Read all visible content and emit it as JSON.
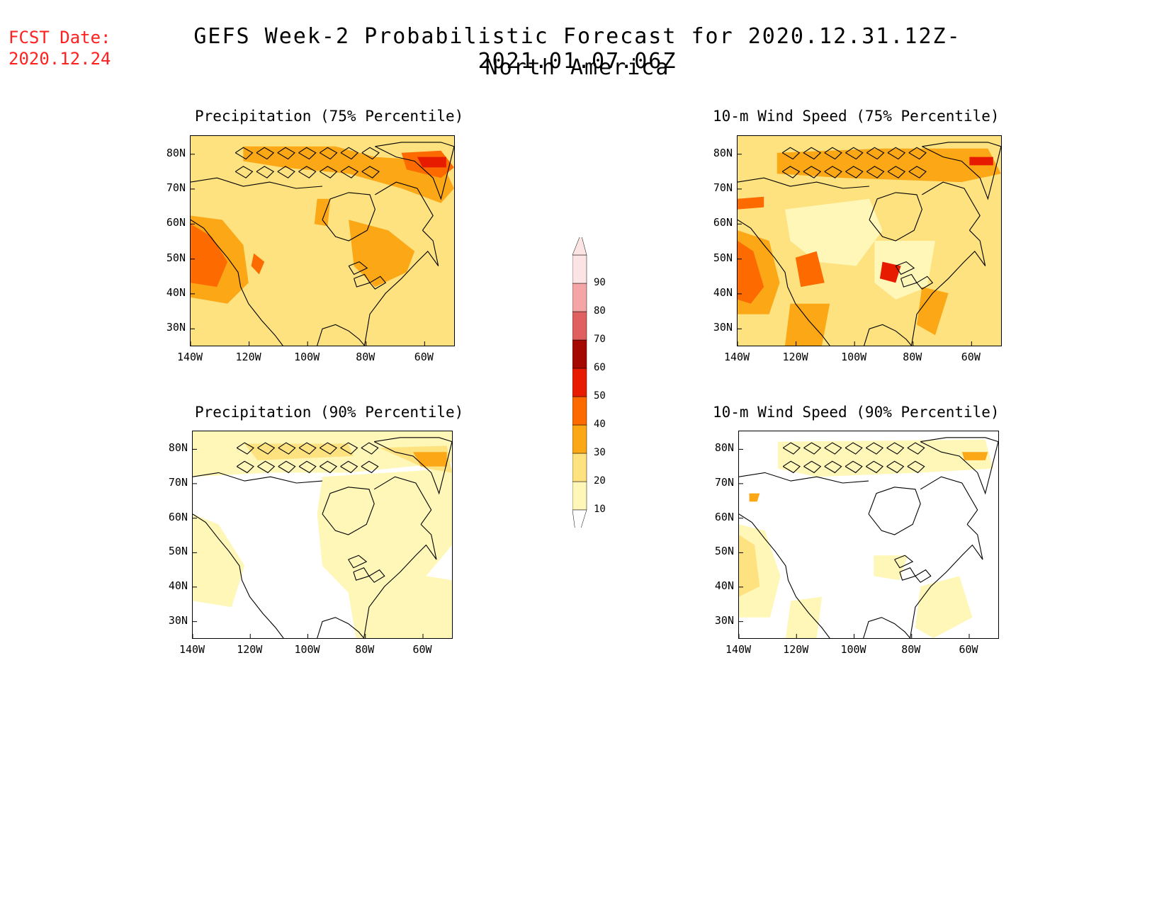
{
  "header": {
    "fcst_label": "FCST Date:",
    "fcst_date": "2020.12.24",
    "title": "GEFS Week-2 Probabilistic Forecast for 2020.12.31.12Z-2021.01.07.06Z",
    "region": "North America"
  },
  "axes": {
    "lat_labels": [
      "80N",
      "70N",
      "60N",
      "50N",
      "40N",
      "30N"
    ],
    "lon_labels": [
      "140W",
      "120W",
      "100W",
      "80W",
      "60W"
    ]
  },
  "panels": [
    {
      "title": "Precipitation (75% Percentile)",
      "intensity": "high",
      "theme": "precip"
    },
    {
      "title": "10-m Wind Speed (75% Percentile)",
      "intensity": "high",
      "theme": "wind"
    },
    {
      "title": "Precipitation (90% Percentile)",
      "intensity": "low",
      "theme": "precip"
    },
    {
      "title": "10-m Wind Speed (90% Percentile)",
      "intensity": "low",
      "theme": "wind"
    }
  ],
  "colorbar": {
    "levels": [
      "10",
      "20",
      "30",
      "40",
      "50",
      "60",
      "70",
      "80",
      "90"
    ],
    "colors": [
      "#fff7b8",
      "#fde27f",
      "#fca716",
      "#fc6a00",
      "#e61b00",
      "#a50800",
      "#e06060",
      "#f4a5a5",
      "#fde4e4"
    ]
  }
}
